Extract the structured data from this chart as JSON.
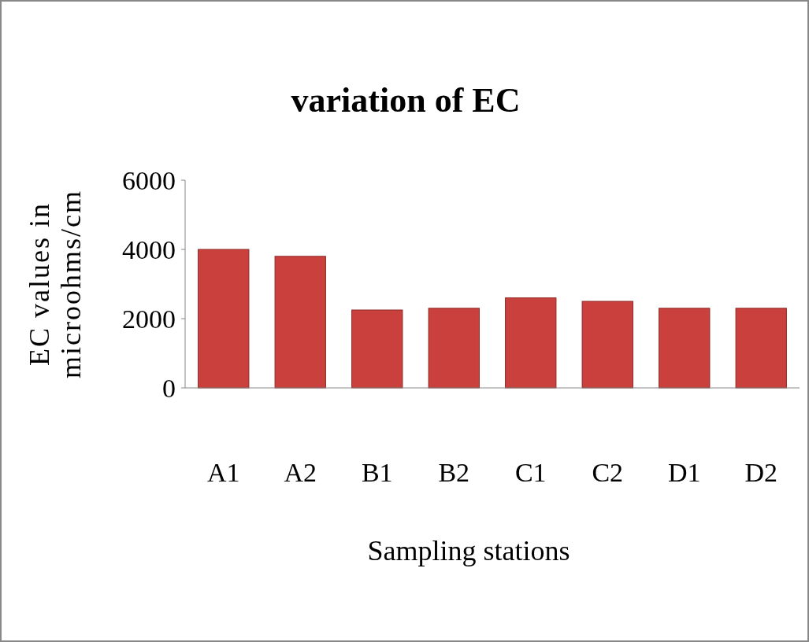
{
  "chart_data": {
    "type": "bar",
    "title": "variation of EC",
    "xlabel": "Sampling stations",
    "ylabel": "EC values in microohms/cm",
    "categories": [
      "A1",
      "A2",
      "B1",
      "B2",
      "C1",
      "C2",
      "D1",
      "D2"
    ],
    "values": [
      4000,
      3800,
      2250,
      2300,
      2600,
      2500,
      2300,
      2300
    ],
    "color": "#c9403c",
    "ylim": [
      0,
      6000
    ],
    "yticks": [
      0,
      2000,
      4000,
      6000
    ],
    "grid": false
  }
}
